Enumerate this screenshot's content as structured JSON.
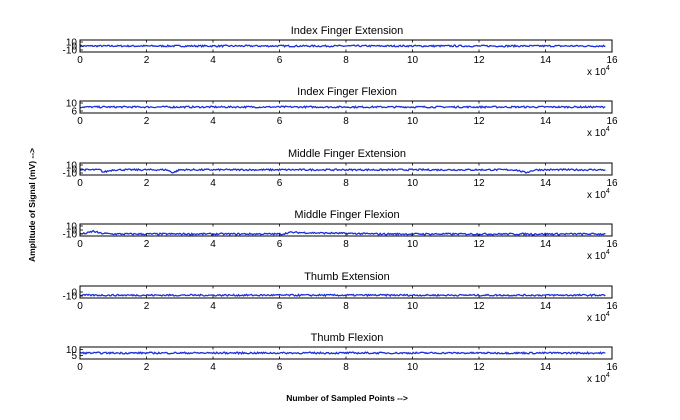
{
  "figure": {
    "ylabel": "Amplitude of Signal (mV) -->",
    "xlabel": "Number of Sampled Points -->",
    "x_multiplier_base": "x 10",
    "x_multiplier_exp": "4"
  },
  "chart_data": [
    {
      "type": "line",
      "title": "Index Finger Extension",
      "xlabel": "",
      "ylabel": "",
      "x": [
        0,
        1.5,
        3,
        4.5,
        6,
        7.5,
        9,
        10.5,
        12,
        13.5,
        15,
        15.8
      ],
      "series": [
        {
          "values": [
            0,
            0,
            0,
            0,
            0,
            0,
            0,
            0,
            0,
            0,
            0,
            0
          ]
        }
      ],
      "xlim": [
        0,
        16
      ],
      "ylim": [
        -15,
        15
      ],
      "xticks": [
        "0",
        "2",
        "4",
        "6",
        "8",
        "10",
        "12",
        "14",
        "16"
      ],
      "yticks": [
        "10",
        "0",
        "-10"
      ],
      "line_color": "#1a2fd6"
    },
    {
      "type": "line",
      "title": "Index Finger Flexion",
      "xlabel": "",
      "ylabel": "",
      "x": [
        0,
        1.5,
        3,
        4.5,
        6,
        7.5,
        9,
        10.5,
        12,
        13.5,
        15,
        15.8
      ],
      "series": [
        {
          "values": [
            8,
            8,
            8,
            8,
            8,
            8,
            8,
            8,
            8,
            8,
            8,
            8
          ]
        }
      ],
      "xlim": [
        0,
        16
      ],
      "ylim": [
        5,
        11
      ],
      "xticks": [
        "0",
        "2",
        "4",
        "6",
        "8",
        "10",
        "12",
        "14",
        "16"
      ],
      "yticks": [
        "10",
        "6"
      ],
      "line_color": "#1a2fd6"
    },
    {
      "type": "line",
      "title": "Middle Finger Extension",
      "xlabel": "",
      "ylabel": "",
      "x": [
        0,
        0.6,
        0.7,
        1.0,
        2.6,
        2.8,
        3.0,
        6,
        9,
        12,
        13.1,
        13.4,
        13.7,
        15.8
      ],
      "series": [
        {
          "values": [
            -2,
            -2,
            -8,
            -2,
            -2,
            -9,
            -2,
            -2,
            -2,
            -2,
            -2,
            -9,
            -2,
            -2
          ]
        }
      ],
      "xlim": [
        0,
        16
      ],
      "ylim": [
        -15,
        15
      ],
      "xticks": [
        "0",
        "2",
        "4",
        "6",
        "8",
        "10",
        "12",
        "14",
        "16"
      ],
      "yticks": [
        "10",
        "0",
        "-10"
      ],
      "line_color": "#1a2fd6"
    },
    {
      "type": "line",
      "title": "Middle Finger Flexion",
      "xlabel": "",
      "ylabel": "",
      "x": [
        0,
        0.2,
        0.4,
        0.6,
        1.0,
        3,
        6.1,
        6.3,
        9,
        12,
        14.5,
        15.8
      ],
      "series": [
        {
          "values": [
            -10,
            -8,
            -3,
            -8,
            -10,
            -10,
            -10,
            -6,
            -10,
            -10,
            -10,
            -10
          ]
        }
      ],
      "xlim": [
        0,
        16
      ],
      "ylim": [
        -15,
        15
      ],
      "xticks": [
        "0",
        "2",
        "4",
        "6",
        "8",
        "10",
        "12",
        "14",
        "16"
      ],
      "yticks": [
        "10",
        "0",
        "-10"
      ],
      "line_color": "#1a2fd6"
    },
    {
      "type": "line",
      "title": "Thumb Extension",
      "xlabel": "",
      "ylabel": "",
      "x": [
        0,
        1.5,
        3,
        4.5,
        6,
        7.5,
        9,
        10.5,
        12,
        13.5,
        15,
        15.8
      ],
      "series": [
        {
          "values": [
            -8,
            -8,
            -8,
            -8,
            -8,
            -8,
            -8,
            -8,
            -8,
            -8,
            -8,
            -8
          ]
        }
      ],
      "xlim": [
        0,
        16
      ],
      "ylim": [
        -15,
        15
      ],
      "xticks": [
        "0",
        "2",
        "4",
        "6",
        "8",
        "10",
        "12",
        "14",
        "16"
      ],
      "yticks": [
        "0",
        "-10"
      ],
      "line_color": "#1a2fd6"
    },
    {
      "type": "line",
      "title": "Thumb Flexion",
      "xlabel": "",
      "ylabel": "",
      "x": [
        0,
        1.5,
        3,
        4.5,
        6,
        7.5,
        9,
        10.5,
        12,
        13.5,
        15,
        15.8
      ],
      "series": [
        {
          "values": [
            7,
            7,
            7,
            7,
            7,
            7,
            7,
            7,
            7,
            7,
            7,
            7
          ]
        }
      ],
      "xlim": [
        0,
        16
      ],
      "ylim": [
        2,
        12
      ],
      "xticks": [
        "0",
        "2",
        "4",
        "6",
        "8",
        "10",
        "12",
        "14",
        "16"
      ],
      "yticks": [
        "10",
        "5"
      ],
      "line_color": "#1a2fd6"
    }
  ]
}
